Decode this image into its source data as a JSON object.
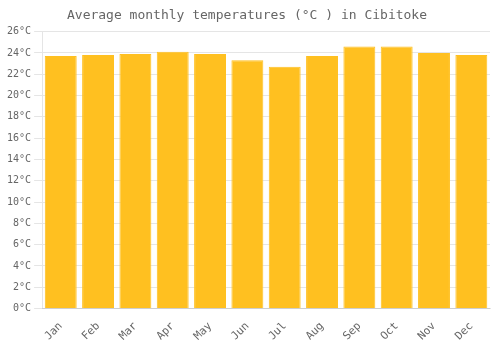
{
  "chart_data": {
    "type": "bar",
    "title": "Average monthly temperatures (°C ) in Cibitoke",
    "categories": [
      "Jan",
      "Feb",
      "Mar",
      "Apr",
      "May",
      "Jun",
      "Jul",
      "Aug",
      "Sep",
      "Oct",
      "Nov",
      "Dec"
    ],
    "values": [
      23.7,
      23.8,
      23.9,
      24.1,
      23.9,
      23.3,
      22.7,
      23.7,
      24.6,
      24.6,
      24.0,
      23.8
    ],
    "color": "#FFC020",
    "ylim": [
      0,
      26
    ],
    "yticks": [
      {
        "value": 0,
        "label": "0°C"
      },
      {
        "value": 2,
        "label": "2°C"
      },
      {
        "value": 4,
        "label": "4°C"
      },
      {
        "value": 6,
        "label": "6°C"
      },
      {
        "value": 8,
        "label": "8°C"
      },
      {
        "value": 10,
        "label": "10°C"
      },
      {
        "value": 12,
        "label": "12°C"
      },
      {
        "value": 14,
        "label": "14°C"
      },
      {
        "value": 16,
        "label": "16°C"
      },
      {
        "value": 18,
        "label": "18°C"
      },
      {
        "value": 20,
        "label": "20°C"
      },
      {
        "value": 22,
        "label": "22°C"
      },
      {
        "value": 24,
        "label": "24°C"
      },
      {
        "value": 26,
        "label": "26°C"
      }
    ],
    "grid": true
  }
}
